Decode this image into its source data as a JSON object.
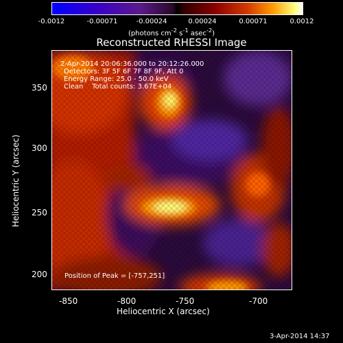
{
  "colorbar": {
    "ticks": [
      "-0.0012",
      "-0.00071",
      "-0.00024",
      "0.00024",
      "0.00071",
      "0.0012"
    ],
    "units_html": "(photons cm<sup>-2</sup> s<sup>-1</sup> asec<sup>-2</sup>)"
  },
  "title": "Reconstructed RHESSI Image",
  "info": {
    "time": "2-Apr-2014 20:06:36.000 to 20:12:26.000",
    "detectors": "Detectors: 3F 5F 6F 7F 8F 9F, Att 0",
    "energy": "Energy Range: 25.0 - 50.0 keV",
    "clean": "Clean    Total counts: 3.67E+04"
  },
  "peak_text": "Position of Peak = [-757,251]",
  "x_axis": {
    "label": "Heliocentric X (arcsec)",
    "ticks": [
      "-850",
      "-800",
      "-750",
      "-700"
    ]
  },
  "y_axis": {
    "label": "Heliocentric Y (arcsec)",
    "ticks": [
      "350",
      "300",
      "250",
      "200"
    ]
  },
  "timestamp": "3-Apr-2014 14:37"
}
